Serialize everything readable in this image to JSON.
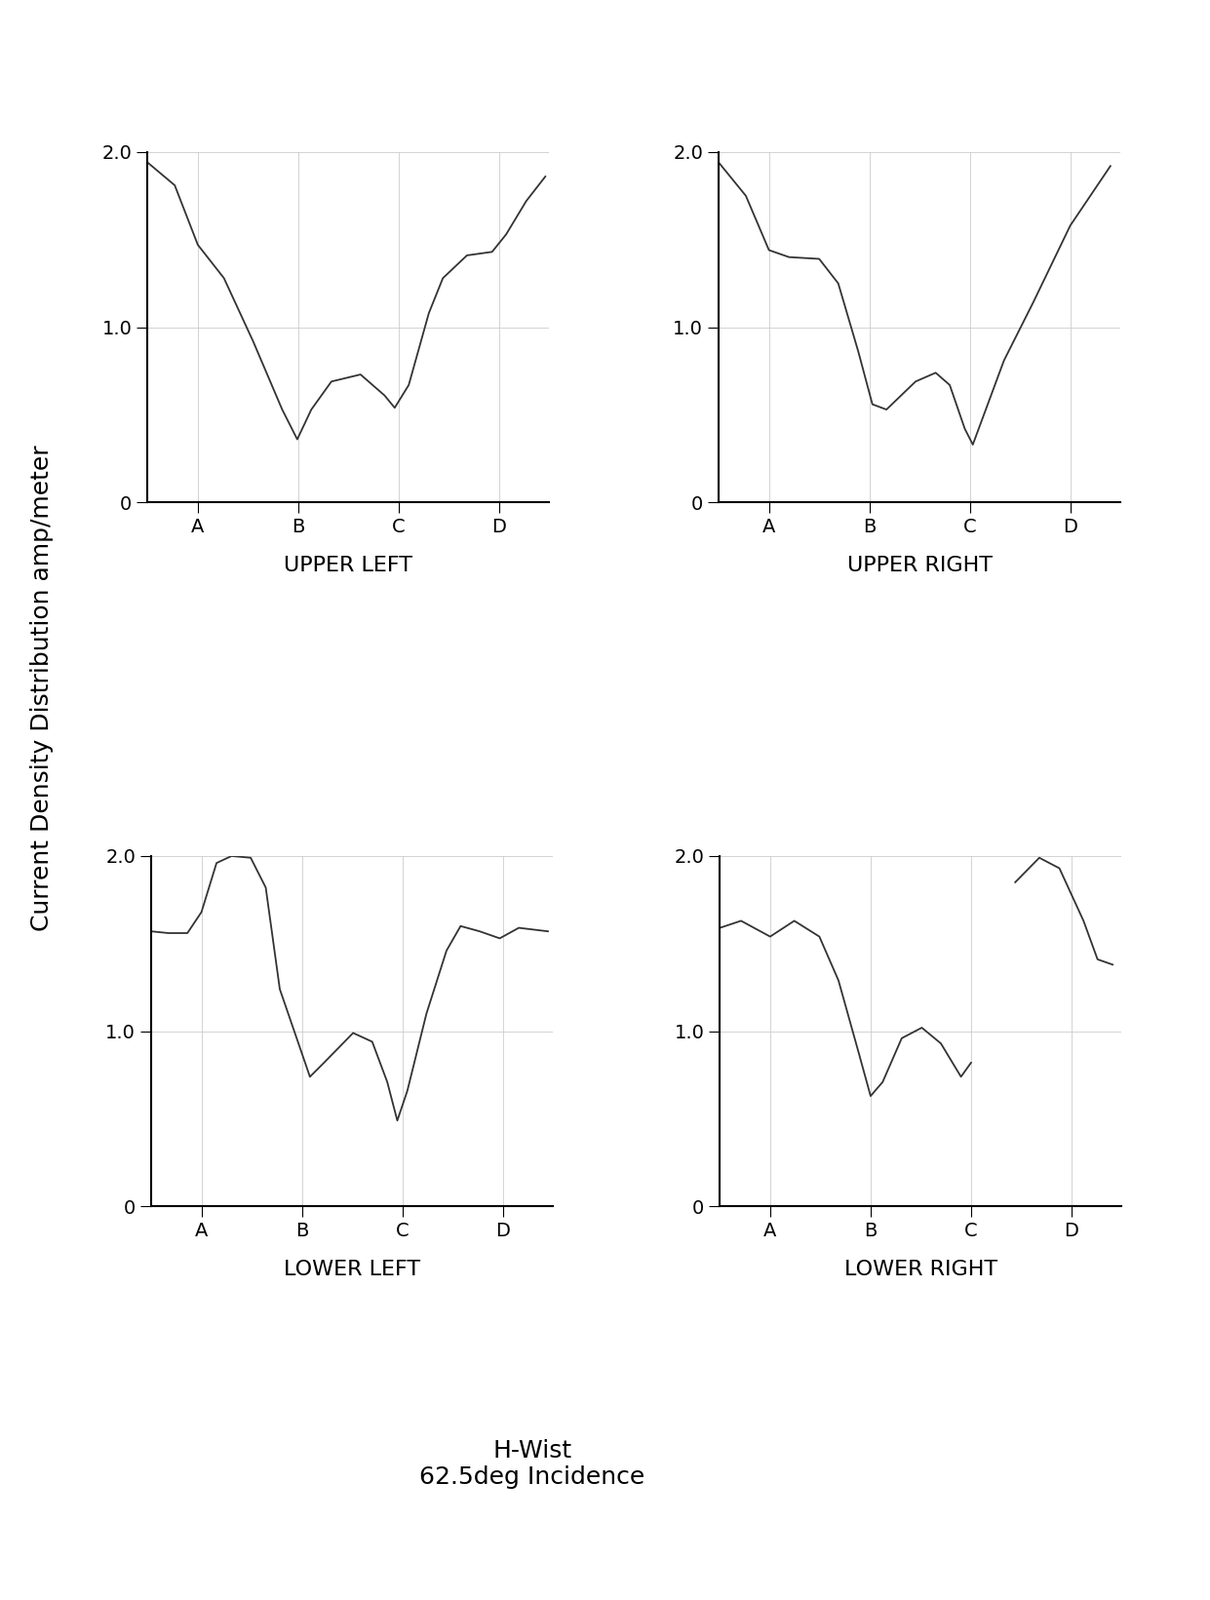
{
  "figure": {
    "ylabel": "Current Density Distribution amp/meter",
    "caption": "H-Wist\n62.5deg Incidence"
  },
  "chart_data": [
    {
      "type": "line",
      "xlabel": "UPPER LEFT",
      "color": "#333333",
      "grid": true,
      "xlim": [
        0.5,
        4.5
      ],
      "ylim": [
        0,
        2.0
      ],
      "xticks": [
        {
          "value": 1,
          "label": "A"
        },
        {
          "value": 2,
          "label": "B"
        },
        {
          "value": 3,
          "label": "C"
        },
        {
          "value": 4,
          "label": "D"
        }
      ],
      "yticks": [
        0,
        1.0,
        2.0
      ],
      "x": [
        0.5,
        0.77,
        1.0,
        1.26,
        1.55,
        1.84,
        1.99,
        2.13,
        2.33,
        2.62,
        2.86,
        2.96,
        3.1,
        3.3,
        3.44,
        3.68,
        3.93,
        4.07,
        4.27,
        4.46
      ],
      "values": [
        1.94,
        1.81,
        1.47,
        1.28,
        0.92,
        0.53,
        0.36,
        0.53,
        0.69,
        0.73,
        0.61,
        0.54,
        0.67,
        1.08,
        1.28,
        1.41,
        1.43,
        1.53,
        1.72,
        1.86
      ]
    },
    {
      "type": "line",
      "xlabel": "UPPER RIGHT",
      "color": "#333333",
      "grid": true,
      "xlim": [
        0.5,
        4.5
      ],
      "ylim": [
        0,
        2.0
      ],
      "xticks": [
        {
          "value": 1,
          "label": "A"
        },
        {
          "value": 2,
          "label": "B"
        },
        {
          "value": 3,
          "label": "C"
        },
        {
          "value": 4,
          "label": "D"
        }
      ],
      "yticks": [
        0,
        1.0,
        2.0
      ],
      "x": [
        0.5,
        0.77,
        1.0,
        1.2,
        1.5,
        1.69,
        1.89,
        2.03,
        2.17,
        2.46,
        2.66,
        2.8,
        2.95,
        3.03,
        3.34,
        3.63,
        4.0,
        4.4
      ],
      "values": [
        1.94,
        1.75,
        1.44,
        1.4,
        1.39,
        1.25,
        0.86,
        0.56,
        0.53,
        0.69,
        0.74,
        0.67,
        0.42,
        0.33,
        0.81,
        1.14,
        1.58,
        1.92
      ]
    },
    {
      "type": "line",
      "xlabel": "LOWER LEFT",
      "color": "#333333",
      "grid": true,
      "xlim": [
        0.5,
        4.5
      ],
      "ylim": [
        0,
        2.0
      ],
      "xticks": [
        {
          "value": 1,
          "label": "A"
        },
        {
          "value": 2,
          "label": "B"
        },
        {
          "value": 3,
          "label": "C"
        },
        {
          "value": 4,
          "label": "D"
        }
      ],
      "yticks": [
        0,
        1.0,
        2.0
      ],
      "x": [
        0.5,
        0.67,
        0.86,
        1.0,
        1.15,
        1.3,
        1.49,
        1.64,
        1.78,
        1.93,
        2.08,
        2.22,
        2.51,
        2.7,
        2.85,
        2.95,
        3.05,
        3.24,
        3.44,
        3.58,
        3.77,
        3.97,
        4.16,
        4.45
      ],
      "values": [
        1.57,
        1.56,
        1.56,
        1.68,
        1.96,
        2.0,
        1.99,
        1.82,
        1.24,
        0.99,
        0.74,
        0.82,
        0.99,
        0.94,
        0.71,
        0.49,
        0.66,
        1.1,
        1.46,
        1.6,
        1.57,
        1.53,
        1.59,
        1.57
      ]
    },
    {
      "type": "line",
      "xlabel": "LOWER RIGHT",
      "color": "#333333",
      "grid": true,
      "xlim": [
        0.5,
        4.5
      ],
      "ylim": [
        0,
        2.0
      ],
      "xticks": [
        {
          "value": 1,
          "label": "A"
        },
        {
          "value": 2,
          "label": "B"
        },
        {
          "value": 3,
          "label": "C"
        },
        {
          "value": 4,
          "label": "D"
        }
      ],
      "yticks": [
        0,
        1.0,
        2.0
      ],
      "x": [
        0.5,
        0.71,
        1.0,
        1.24,
        1.49,
        1.68,
        1.88,
        2.0,
        2.12,
        2.31,
        2.51,
        2.7,
        2.9,
        3.0,
        3.2,
        3.44,
        3.68,
        3.88,
        4.12,
        4.26,
        4.41
      ],
      "values": [
        1.59,
        1.63,
        1.54,
        1.63,
        1.54,
        1.29,
        0.88,
        0.63,
        0.71,
        0.96,
        1.02,
        0.93,
        0.74,
        0.82,
        null,
        1.85,
        1.99,
        1.93,
        1.63,
        1.41,
        1.38
      ]
    }
  ]
}
